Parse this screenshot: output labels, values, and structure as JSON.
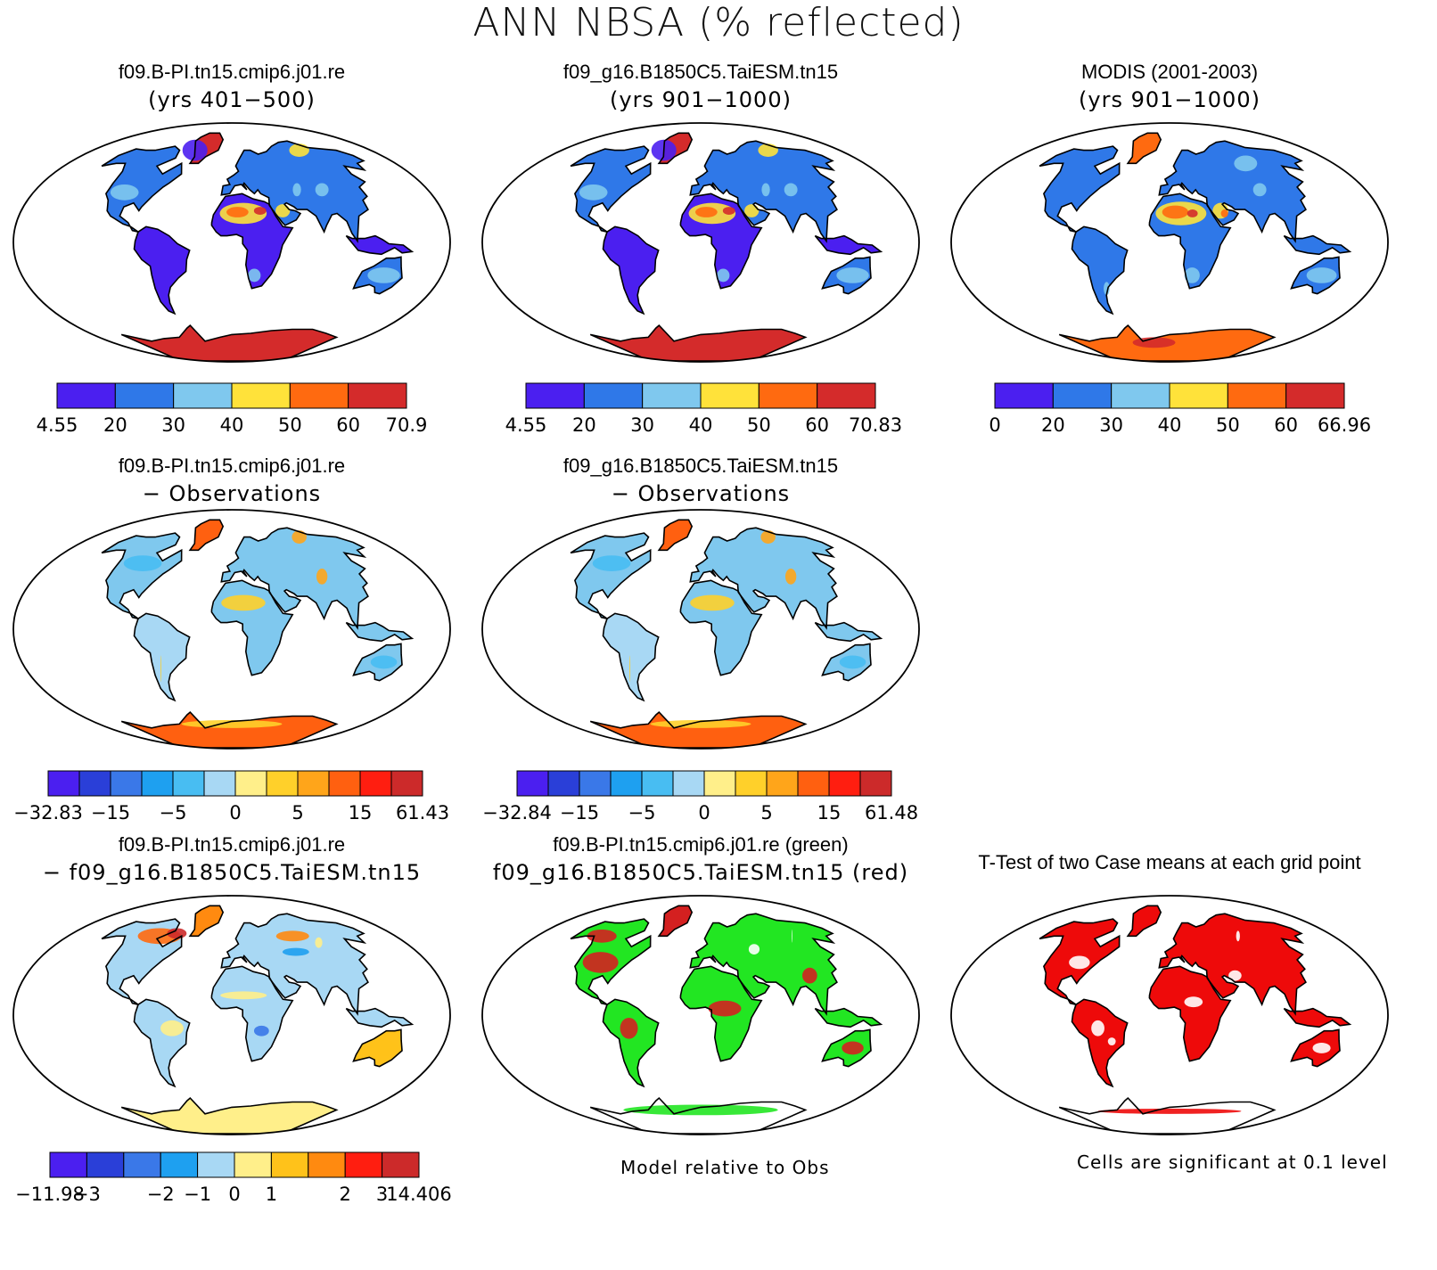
{
  "figure_title": "ANN NBSA (% reflected)",
  "panels": [
    {
      "title1": "f09.B-PI.tn15.cmip6.j01.re",
      "title2": "(yrs 401−500)",
      "kind": "field",
      "colorbar": {
        "colors": [
          "#4b1ff0",
          "#2f78e8",
          "#7fc8ee",
          "#ffe23a",
          "#ff6a10",
          "#d42b2b"
        ],
        "labels": [
          "4.55",
          "20",
          "30",
          "40",
          "50",
          "60",
          "70.9"
        ]
      }
    },
    {
      "title1": "f09_g16.B1850C5.TaiESM.tn15",
      "title2": "(yrs 901−1000)",
      "kind": "field",
      "colorbar": {
        "colors": [
          "#4b1ff0",
          "#2f78e8",
          "#7fc8ee",
          "#ffe23a",
          "#ff6a10",
          "#d42b2b"
        ],
        "labels": [
          "4.55",
          "20",
          "30",
          "40",
          "50",
          "60",
          "70.83"
        ]
      }
    },
    {
      "title1": "MODIS (2001-2003)",
      "title2": "(yrs 901−1000)",
      "kind": "obs",
      "colorbar": {
        "colors": [
          "#4b1ff0",
          "#2f78e8",
          "#7fc8ee",
          "#ffe23a",
          "#ff6a10",
          "#d42b2b"
        ],
        "labels": [
          "0",
          "20",
          "30",
          "40",
          "50",
          "60",
          "66.96"
        ]
      }
    },
    {
      "title1": "f09.B-PI.tn15.cmip6.j01.re",
      "title2": "− Observations",
      "kind": "diff",
      "colorbar": {
        "colors": [
          "#4b1ff0",
          "#2a3fd8",
          "#3a78e8",
          "#1ea0f0",
          "#48bdf2",
          "#a8d8f4",
          "#ffef8a",
          "#ffd02a",
          "#ffa51a",
          "#ff6010",
          "#ff1e10",
          "#cc2a2a"
        ],
        "labels": [
          "−32.83",
          "−15",
          "−5",
          "0",
          "5",
          "15",
          "61.43"
        ]
      }
    },
    {
      "title1": "f09_g16.B1850C5.TaiESM.tn15",
      "title2": "− Observations",
      "kind": "diff",
      "colorbar": {
        "colors": [
          "#4b1ff0",
          "#2a3fd8",
          "#3a78e8",
          "#1ea0f0",
          "#48bdf2",
          "#a8d8f4",
          "#ffef8a",
          "#ffd02a",
          "#ffa51a",
          "#ff6010",
          "#ff1e10",
          "#cc2a2a"
        ],
        "labels": [
          "−32.84",
          "−15",
          "−5",
          "0",
          "5",
          "15",
          "61.48"
        ]
      }
    },
    {
      "title1": "f09.B-PI.tn15.cmip6.j01.re",
      "title2": "− f09_g16.B1850C5.TaiESM.tn15",
      "kind": "casediff",
      "colorbar": {
        "colors": [
          "#4b1ff0",
          "#2a3fd8",
          "#3a78e8",
          "#1ea0f0",
          "#a8d8f4",
          "#ffef8a",
          "#ffc21a",
          "#ff8a10",
          "#ff1e10",
          "#cc2a2a"
        ],
        "labels": [
          "−11.98",
          "−3",
          "−2",
          "−1",
          "0",
          "1",
          "2",
          "3",
          "14.406"
        ]
      }
    },
    {
      "title1": "f09.B-PI.tn15.cmip6.j01.re (green)",
      "title2": "f09_g16.B1850C5.TaiESM.tn15 (red)",
      "kind": "greenred",
      "note": "Model relative to Obs"
    },
    {
      "title1": "T-Test of two Case means at each grid point",
      "title2": "",
      "kind": "ttest",
      "note": "Cells are significant at 0.1 level"
    }
  ]
}
